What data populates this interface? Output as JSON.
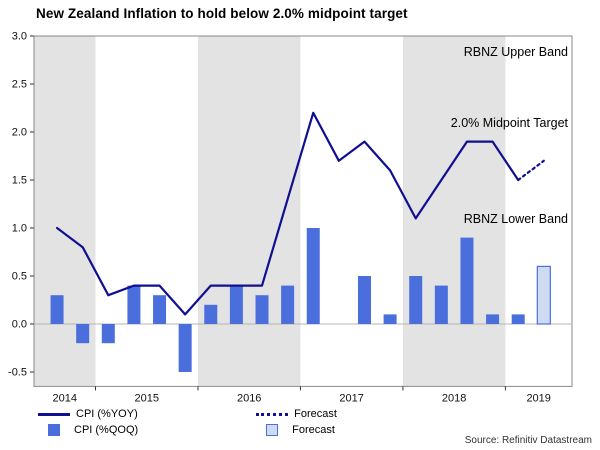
{
  "title": "New Zealand Inflation to hold below 2.0% midpoint target",
  "source": "Source: Refinitiv Datastream",
  "colors": {
    "line": "#101090",
    "bar": "#4a6fdc",
    "forecast_fill": "#cfdaf3",
    "band": "#e3e3e3"
  },
  "legend": [
    {
      "label": "CPI (%YOY)",
      "type": "line"
    },
    {
      "label": "CPI (%QOQ)",
      "type": "bar"
    },
    {
      "label": "Forecast",
      "type": "dotted-line"
    },
    {
      "label": "Forecast",
      "type": "light-bar"
    }
  ],
  "chart_data": {
    "type": "bar+line combo",
    "title": "New Zealand Inflation to hold below 2.0% midpoint target",
    "quarters": [
      "2014Q3",
      "2014Q4",
      "2015Q1",
      "2015Q2",
      "2015Q3",
      "2015Q4",
      "2016Q1",
      "2016Q2",
      "2016Q3",
      "2016Q4",
      "2017Q1",
      "2017Q2",
      "2017Q3",
      "2017Q4",
      "2018Q1",
      "2018Q2",
      "2018Q3",
      "2018Q4",
      "2019Q1",
      "2019Q2"
    ],
    "series": [
      {
        "name": "CPI (%YOY)",
        "type": "line",
        "values": [
          1.0,
          0.8,
          0.3,
          0.4,
          0.4,
          0.1,
          0.4,
          0.4,
          0.4,
          1.3,
          2.2,
          1.7,
          1.9,
          1.6,
          1.1,
          1.5,
          1.9,
          1.9,
          1.5,
          null
        ]
      },
      {
        "name": "CPI (%YOY) Forecast",
        "type": "dotted-line",
        "values": [
          null,
          null,
          null,
          null,
          null,
          null,
          null,
          null,
          null,
          null,
          null,
          null,
          null,
          null,
          null,
          null,
          null,
          null,
          1.5,
          1.7
        ]
      },
      {
        "name": "CPI (%QOQ)",
        "type": "bar",
        "values": [
          0.3,
          -0.2,
          -0.2,
          0.4,
          0.3,
          -0.5,
          0.2,
          0.4,
          0.3,
          0.4,
          1.0,
          0.0,
          0.5,
          0.1,
          0.5,
          0.4,
          0.9,
          0.1,
          0.1,
          null
        ]
      },
      {
        "name": "CPI (%QOQ) Forecast",
        "type": "bar-forecast",
        "values": [
          null,
          null,
          null,
          null,
          null,
          null,
          null,
          null,
          null,
          null,
          null,
          null,
          null,
          null,
          null,
          null,
          null,
          null,
          null,
          0.6
        ]
      }
    ],
    "ylim": [
      -0.65,
      3.0
    ],
    "yticks": [
      3.0,
      2.5,
      2.0,
      1.5,
      1.0,
      0.5,
      0.0,
      -0.5
    ],
    "xlabels": [
      "2014",
      "2015",
      "2016",
      "2017",
      "2018",
      "2019"
    ],
    "shaded_years": [
      "2014",
      "2016",
      "2018"
    ],
    "grid": "off",
    "legend_position": "bottom",
    "annotations": [
      {
        "text": "RBNZ Upper Band",
        "y": 2.79
      },
      {
        "text": "2.0% Midpoint Target",
        "y": 2.05
      },
      {
        "text": "RBNZ Lower Band",
        "y": 1.05
      }
    ]
  }
}
